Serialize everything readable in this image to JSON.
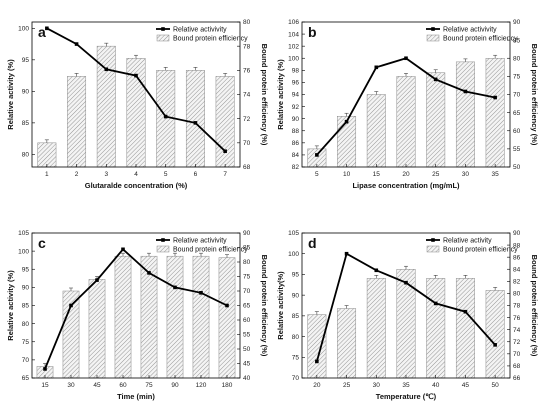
{
  "chart_data": [
    {
      "type": "bar",
      "letter": "a",
      "xlabel": "Glutaralde concentration (%)",
      "ylabel": "Relative activity (%)",
      "y2label": "Bound protein efficiency (%)",
      "categories": [
        "1",
        "2",
        "3",
        "4",
        "5",
        "6",
        "7"
      ],
      "ylim": [
        78,
        101
      ],
      "yticks": [
        80,
        85,
        90,
        95,
        100
      ],
      "y2lim": [
        68,
        80
      ],
      "y2ticks": [
        68,
        70,
        72,
        74,
        76,
        78,
        80
      ],
      "series": [
        {
          "name": "Relative activivity",
          "axis": "left",
          "kind": "line",
          "values": [
            100,
            97.5,
            93.5,
            92.5,
            86,
            85,
            80.5
          ]
        },
        {
          "name": "Bound protein efficiency",
          "axis": "right",
          "kind": "bar",
          "values": [
            70,
            75.5,
            78,
            77,
            76,
            76,
            75.5
          ]
        }
      ],
      "legend": "top-right"
    },
    {
      "type": "bar",
      "letter": "b",
      "xlabel": "Lipase concentration (mg/mL)",
      "ylabel": "Relative activity (%)",
      "y2label": "Bound protein efficiency (%)",
      "categories": [
        "5",
        "10",
        "15",
        "20",
        "25",
        "30",
        "35"
      ],
      "ylim": [
        82,
        106
      ],
      "yticks": [
        82,
        84,
        86,
        88,
        90,
        92,
        94,
        96,
        98,
        100,
        102,
        104,
        106
      ],
      "y2lim": [
        50,
        90
      ],
      "y2ticks": [
        50,
        55,
        60,
        65,
        70,
        75,
        80,
        85,
        90
      ],
      "series": [
        {
          "name": "Relative activivity",
          "axis": "left",
          "kind": "line",
          "values": [
            84,
            89.5,
            98.5,
            100,
            96.5,
            94.5,
            93.5
          ]
        },
        {
          "name": "Bound protein efficiency",
          "axis": "right",
          "kind": "bar",
          "values": [
            55,
            64,
            70,
            75,
            76,
            79,
            80
          ]
        }
      ],
      "legend": "top-right"
    },
    {
      "type": "bar",
      "letter": "c",
      "xlabel": "Time (min)",
      "ylabel": "Relative activity (%)",
      "y2label": "Bound protein efficiency (%)",
      "categories": [
        "15",
        "30",
        "45",
        "60",
        "75",
        "90",
        "120",
        "180"
      ],
      "ylim": [
        65,
        105
      ],
      "yticks": [
        65,
        70,
        75,
        80,
        85,
        90,
        95,
        100,
        105
      ],
      "y2lim": [
        40,
        90
      ],
      "y2ticks": [
        40,
        45,
        50,
        55,
        60,
        65,
        70,
        75,
        80,
        85,
        90
      ],
      "series": [
        {
          "name": "Relative activivity",
          "axis": "left",
          "kind": "line",
          "values": [
            67.5,
            85,
            92,
            100.5,
            94,
            90,
            88.5,
            85
          ]
        },
        {
          "name": "Bound protein efficiency",
          "axis": "right",
          "kind": "bar",
          "values": [
            44,
            70,
            74,
            82,
            82,
            82,
            82,
            81.5
          ]
        }
      ],
      "legend": "top-right"
    },
    {
      "type": "bar",
      "letter": "d",
      "xlabel": "Temperature (℃)",
      "ylabel": "Relative activity(%)",
      "y2label": "Bound protein efficiency (%)",
      "categories": [
        "20",
        "25",
        "30",
        "35",
        "40",
        "45",
        "50"
      ],
      "ylim": [
        70,
        105
      ],
      "yticks": [
        70,
        75,
        80,
        85,
        90,
        95,
        100,
        105
      ],
      "y2lim": [
        66,
        90
      ],
      "y2ticks": [
        66,
        68,
        70,
        72,
        74,
        76,
        78,
        80,
        82,
        84,
        86,
        88,
        90
      ],
      "series": [
        {
          "name": "Relative activity",
          "axis": "left",
          "kind": "line",
          "values": [
            74,
            100,
            96,
            93,
            88,
            86,
            78
          ]
        },
        {
          "name": "Bound protein efficiency",
          "axis": "right",
          "kind": "bar",
          "values": [
            76.5,
            77.5,
            82.5,
            84,
            82.5,
            82.5,
            80.5
          ]
        }
      ],
      "legend": "top-right"
    }
  ]
}
